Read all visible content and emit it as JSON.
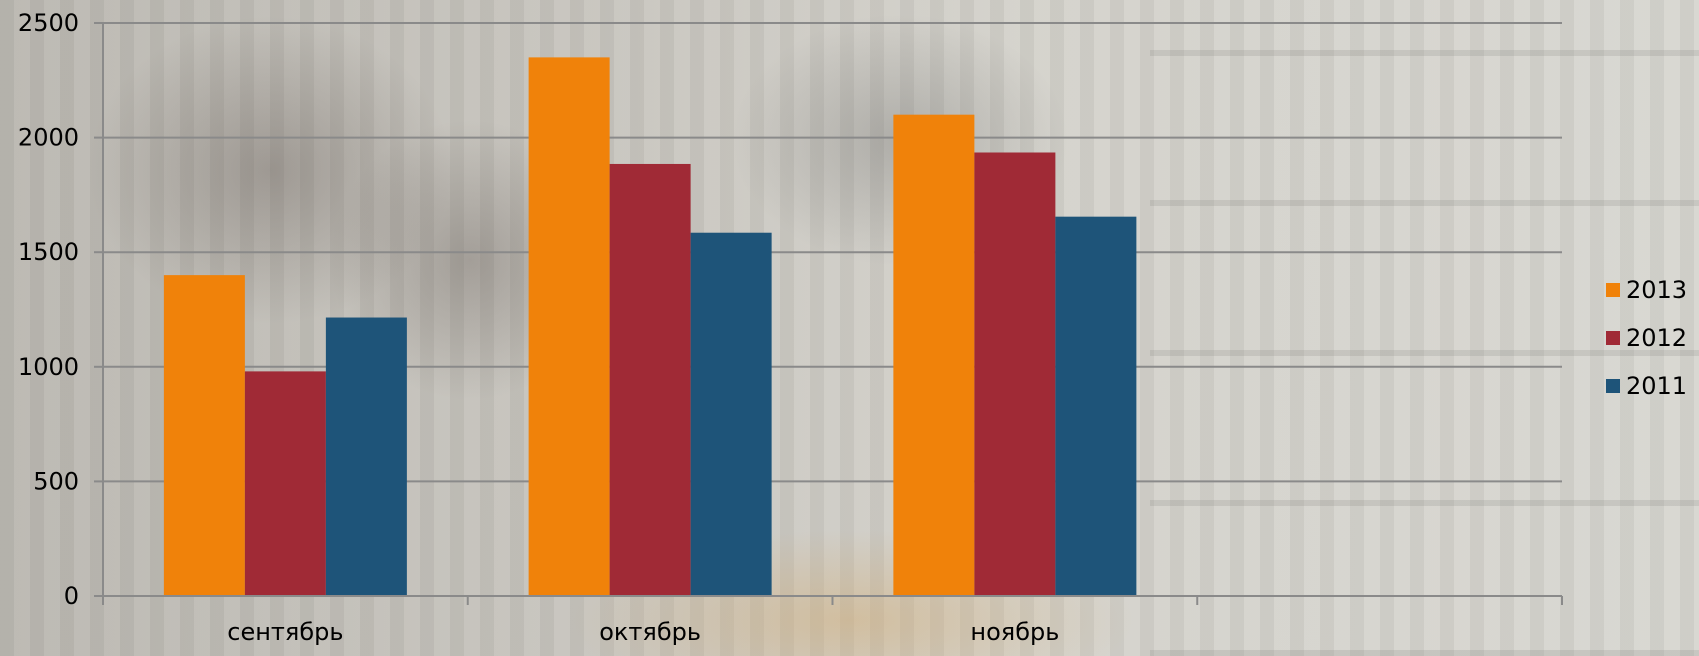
{
  "chart_data": {
    "type": "bar",
    "categories": [
      "сентябрь",
      "октябрь",
      "ноябрь",
      ""
    ],
    "series": [
      {
        "name": "2013",
        "values": [
          1400,
          2350,
          2100,
          null
        ],
        "color": "#F0820A"
      },
      {
        "name": "2012",
        "values": [
          980,
          1885,
          1935,
          null
        ],
        "color": "#A02A36"
      },
      {
        "name": "2011",
        "values": [
          1215,
          1585,
          1655,
          null
        ],
        "color": "#1E5479"
      }
    ],
    "title": "",
    "xlabel": "",
    "ylabel": "",
    "ylim": [
      0,
      2500
    ],
    "yticks": [
      0,
      500,
      1000,
      1500,
      2000,
      2500
    ],
    "grid": true,
    "legend": "right"
  }
}
